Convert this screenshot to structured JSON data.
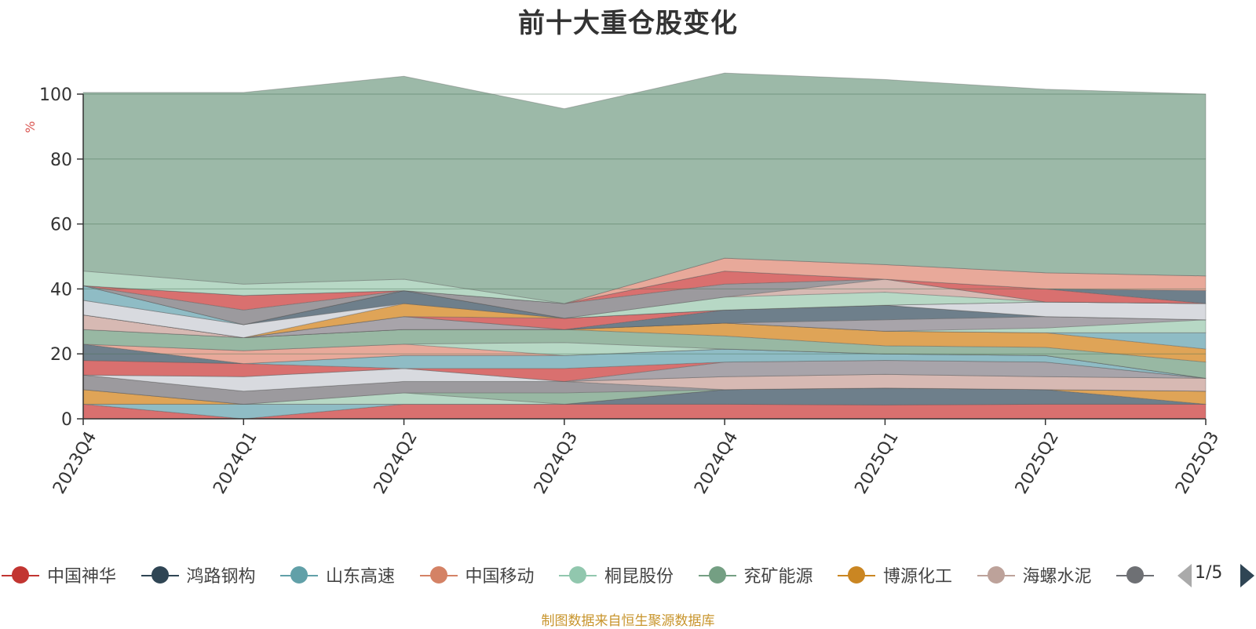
{
  "chart_data": {
    "type": "area",
    "stacked": true,
    "title": "前十大重仓股变化",
    "ylabel": "%",
    "ylim": [
      0,
      100
    ],
    "y_ticks": [
      "0",
      "20",
      "40",
      "60",
      "80",
      "100"
    ],
    "categories": [
      "2023Q4",
      "2024Q1",
      "2024Q2",
      "2024Q3",
      "2024Q4",
      "2025Q1",
      "2025Q2",
      "2025Q3"
    ],
    "grid": true,
    "legend_position": "bottom",
    "series": [
      {
        "name": "中国神华",
        "color": "#d9706f",
        "values": [
          4.5,
          0,
          4.5,
          4.5,
          4.5,
          4.3,
          4.5,
          4.5
        ]
      },
      {
        "name": "山东高速",
        "color": "#8fbcc5",
        "values": [
          0,
          4.5,
          0,
          0,
          0,
          0,
          0,
          0
        ]
      },
      {
        "name": "",
        "color": "#6e7f8b",
        "values": [
          0,
          0,
          0,
          0,
          4.5,
          5.2,
          4.5,
          0
        ]
      },
      {
        "name": "",
        "color": "#dfa457",
        "values": [
          4.5,
          0,
          0,
          0,
          0,
          0,
          0,
          4.0
        ]
      },
      {
        "name": "",
        "color": "#b7d8c5",
        "values": [
          0,
          0,
          3.5,
          0,
          0,
          0,
          0,
          0
        ]
      },
      {
        "name": "",
        "color": "#98b8a3",
        "values": [
          0,
          0,
          0,
          3.5,
          0,
          0,
          0,
          0
        ]
      },
      {
        "name": "",
        "color": "#9c9a9e",
        "values": [
          4.5,
          4.0,
          3.5,
          3.5,
          0,
          0,
          0,
          0
        ]
      },
      {
        "name": "",
        "color": "#d7b9b3",
        "values": [
          0,
          0,
          0,
          0,
          4.0,
          4.2,
          4.0,
          4.0
        ]
      },
      {
        "name": "",
        "color": "#d8dadf",
        "values": [
          0,
          4.5,
          4.0,
          0,
          0,
          0,
          0,
          0
        ]
      },
      {
        "name": "",
        "color": "#a8a4aa",
        "values": [
          0,
          0,
          0,
          0,
          4.5,
          4.3,
          4.5,
          0
        ]
      },
      {
        "name": "",
        "color": "#d9706f",
        "values": [
          4.5,
          4.0,
          0,
          4.0,
          0,
          0,
          0,
          0
        ]
      },
      {
        "name": "",
        "color": "#8fbcc5",
        "values": [
          0,
          0,
          4.0,
          4.0,
          4.0,
          2.0,
          2.0,
          0
        ]
      },
      {
        "name": "",
        "color": "#6e7f8b",
        "values": [
          5.0,
          0,
          0,
          0,
          0,
          0,
          0,
          0
        ]
      },
      {
        "name": "",
        "color": "#e8a99a",
        "values": [
          0,
          4.0,
          3.5,
          0,
          0,
          0,
          0,
          0
        ]
      },
      {
        "name": "",
        "color": "#b7d8c5",
        "values": [
          0,
          0,
          0,
          4.0,
          0,
          0,
          0,
          0
        ]
      },
      {
        "name": "",
        "color": "#98b8a3",
        "values": [
          4.5,
          4.0,
          4.5,
          4.0,
          4.0,
          2.5,
          2.5,
          5.0
        ]
      },
      {
        "name": "",
        "color": "#dfa457",
        "values": [
          0,
          0,
          0,
          0,
          4.0,
          4.5,
          4.5,
          4.0
        ]
      },
      {
        "name": "",
        "color": "#8fbcc5",
        "values": [
          0,
          0,
          0,
          0,
          0,
          0,
          0,
          5.0
        ]
      },
      {
        "name": "",
        "color": "#d7b9b3",
        "values": [
          4.5,
          0,
          0,
          0,
          0,
          0,
          0,
          0
        ]
      },
      {
        "name": "",
        "color": "#b7d8c5",
        "values": [
          0,
          0,
          0,
          0,
          0,
          0,
          1.5,
          4.0
        ]
      },
      {
        "name": "",
        "color": "#a8a4aa",
        "values": [
          0,
          0,
          4.0,
          0,
          0,
          3.5,
          3.5,
          0
        ]
      },
      {
        "name": "",
        "color": "#6e7f8b",
        "values": [
          0,
          0,
          0,
          0,
          4.0,
          4.5,
          0,
          0
        ]
      },
      {
        "name": "",
        "color": "#d9706f",
        "values": [
          0,
          0,
          0,
          3.5,
          0,
          0,
          0,
          0
        ]
      },
      {
        "name": "",
        "color": "#dfa457",
        "values": [
          0,
          0,
          4.0,
          0,
          0,
          0,
          0,
          0
        ]
      },
      {
        "name": "",
        "color": "#d8dadf",
        "values": [
          4.5,
          4.0,
          0,
          0,
          0,
          0,
          4.5,
          5.0
        ]
      },
      {
        "name": "",
        "color": "#6e7f8b",
        "values": [
          0,
          0,
          4.0,
          0,
          0,
          0,
          0,
          0
        ]
      },
      {
        "name": "",
        "color": "#8fbcc5",
        "values": [
          4.5,
          0,
          0,
          0,
          0,
          0,
          0,
          0
        ]
      },
      {
        "name": "",
        "color": "#b7d8c5",
        "values": [
          0,
          0,
          0,
          0,
          4.0,
          4.0,
          0,
          0
        ]
      },
      {
        "name": "",
        "color": "#d7b9b3",
        "values": [
          0,
          0,
          0,
          0,
          0,
          4.0,
          0,
          0
        ]
      },
      {
        "name": "",
        "color": "#9c9a9e",
        "values": [
          0,
          4.5,
          0,
          4.5,
          4.0,
          0,
          0,
          0
        ]
      },
      {
        "name": "",
        "color": "#d9706f",
        "values": [
          0,
          4.5,
          0,
          0,
          4.0,
          0,
          4.0,
          0
        ]
      },
      {
        "name": "",
        "color": "#6e7f8b",
        "values": [
          0,
          0,
          0,
          0,
          0,
          0,
          0,
          4.0
        ]
      },
      {
        "name": "",
        "color": "#e8a99a",
        "values": [
          0,
          0,
          0,
          0,
          4.0,
          4.5,
          5.0,
          4.5
        ]
      },
      {
        "name": "",
        "color": "#b7d8c5",
        "values": [
          4.5,
          3.5,
          3.5,
          0,
          0,
          0,
          0,
          0
        ]
      },
      {
        "name": "",
        "color": "#9cb9a8",
        "values": [
          55.0,
          59.0,
          62.5,
          60.0,
          57.0,
          57.0,
          56.5,
          56.0
        ]
      }
    ]
  },
  "legend": {
    "items": [
      {
        "label": "中国神华",
        "color": "#c23531"
      },
      {
        "label": "鸿路钢构",
        "color": "#2f4554"
      },
      {
        "label": "山东高速",
        "color": "#61a0a8"
      },
      {
        "label": "中国移动",
        "color": "#d48265"
      },
      {
        "label": "桐昆股份",
        "color": "#91c7ae"
      },
      {
        "label": "兖矿能源",
        "color": "#749f83"
      },
      {
        "label": "博源化工",
        "color": "#ca8622"
      },
      {
        "label": "海螺水泥",
        "color": "#bda29a"
      },
      {
        "label": "",
        "color": "#6e7074"
      }
    ],
    "page_indicator": "1/5"
  },
  "source_note": "制图数据来自恒生聚源数据库"
}
